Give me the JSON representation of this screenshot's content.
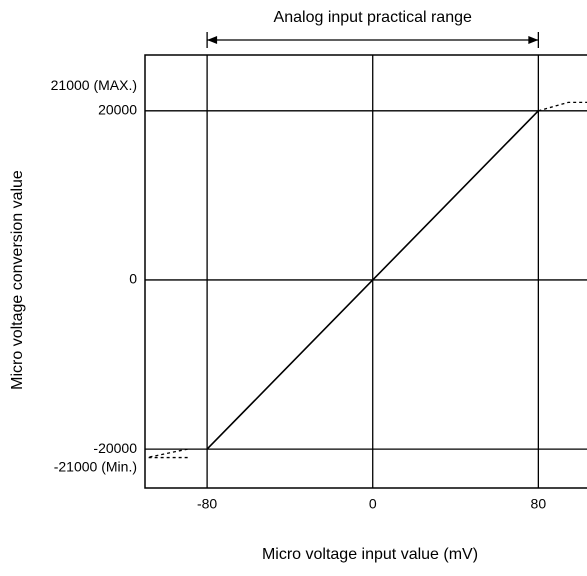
{
  "chart_data": {
    "type": "line",
    "xlabel": "Micro voltage input value (mV)",
    "ylabel": "Micro voltage conversion value",
    "annotation": {
      "text": "Analog input practical range",
      "range": [
        -80,
        80
      ]
    },
    "xlim": [
      -110,
      103.5
    ],
    "ylim": [
      -24600,
      26600
    ],
    "xticks": [
      -80,
      0,
      80
    ],
    "yticks": [
      {
        "value": -21000,
        "label": "-21000 (Min.)"
      },
      -20000,
      0,
      20000,
      {
        "value": 21000,
        "label": "21000 (MAX.)"
      }
    ],
    "grid": true,
    "series": [
      {
        "color": "#000000",
        "style": "solid",
        "x": [
          -80,
          0,
          80
        ],
        "values": [
          -20000,
          0,
          20000
        ]
      },
      {
        "color": "#000000",
        "style": "dashed",
        "x": [
          80,
          94.5,
          103.5
        ],
        "values": [
          20000,
          21000,
          21000
        ]
      },
      {
        "color": "#000000",
        "style": "dashed",
        "x": [
          -89.4,
          -109
        ],
        "values": [
          -20000,
          -21000
        ]
      },
      {
        "color": "#000000",
        "style": "dashed",
        "x": [
          -89.4,
          -109
        ],
        "values": [
          -21000,
          -21000
        ]
      }
    ]
  }
}
